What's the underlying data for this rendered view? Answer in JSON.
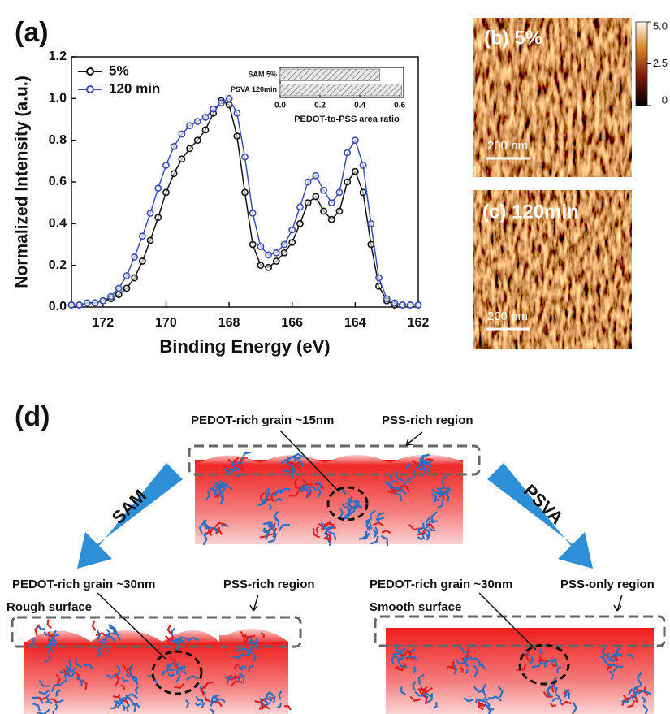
{
  "chart_data": [
    {
      "type": "line",
      "xlabel": "Binding Energy (eV)",
      "ylabel": "Normalized Intensity (a.u.)",
      "x": [
        173,
        172.75,
        172.5,
        172.25,
        172,
        171.75,
        171.5,
        171.25,
        171,
        170.75,
        170.5,
        170.25,
        170,
        169.75,
        169.5,
        169.25,
        169,
        168.75,
        168.5,
        168.25,
        168,
        167.75,
        167.5,
        167.25,
        167,
        166.75,
        166.5,
        166.25,
        166,
        165.75,
        165.5,
        165.25,
        165,
        164.75,
        164.5,
        164.25,
        164,
        163.75,
        163.5,
        163.25,
        163,
        162.75,
        162.5,
        162.25,
        162
      ],
      "series": [
        {
          "name": "5%",
          "color": "#111111",
          "values": [
            0.01,
            0.01,
            0.02,
            0.02,
            0.03,
            0.04,
            0.06,
            0.09,
            0.14,
            0.22,
            0.32,
            0.43,
            0.55,
            0.64,
            0.71,
            0.76,
            0.8,
            0.85,
            0.93,
            0.99,
            0.97,
            0.82,
            0.55,
            0.3,
            0.2,
            0.19,
            0.22,
            0.26,
            0.31,
            0.4,
            0.5,
            0.53,
            0.46,
            0.42,
            0.46,
            0.6,
            0.65,
            0.55,
            0.3,
            0.1,
            0.03,
            0.01,
            0.01,
            0.01,
            0.01
          ]
        },
        {
          "name": "120 min",
          "color": "#3b4fb0",
          "values": [
            0.01,
            0.01,
            0.02,
            0.02,
            0.03,
            0.05,
            0.09,
            0.15,
            0.24,
            0.34,
            0.45,
            0.57,
            0.68,
            0.77,
            0.83,
            0.87,
            0.89,
            0.91,
            0.95,
            0.98,
            1.0,
            0.93,
            0.72,
            0.45,
            0.29,
            0.25,
            0.26,
            0.3,
            0.37,
            0.48,
            0.6,
            0.63,
            0.56,
            0.5,
            0.55,
            0.74,
            0.8,
            0.68,
            0.4,
            0.14,
            0.04,
            0.02,
            0.01,
            0.01,
            0.01
          ]
        }
      ],
      "xlim": [
        173,
        162
      ],
      "xticks": [
        172,
        170,
        168,
        166,
        164,
        162
      ],
      "ylim": [
        0,
        1.2
      ],
      "yticks": [
        {
          "value": 0,
          "label": "0.0"
        },
        0.2,
        0.4,
        0.6,
        0.8,
        {
          "value": 1,
          "label": "1.0"
        },
        1.2
      ],
      "legend": "upper left"
    },
    {
      "type": "hbar",
      "xlabel": "PEDOT-to-PSS area ratio",
      "categories": [
        "SAM 5%",
        "PSVA 120min"
      ],
      "values": [
        0.5,
        0.61
      ],
      "color": "#888888",
      "xlim": [
        0,
        0.62
      ],
      "xticks": [
        {
          "value": 0,
          "label": "0.0"
        },
        0.2,
        0.4,
        0.6
      ]
    }
  ],
  "panels": {
    "a": "(a)",
    "b": "(b) 5%",
    "c": "(c) 120min",
    "d": "(d)"
  },
  "afm": {
    "scale_bars": [
      "200 nm",
      "200 nm"
    ],
    "colorbar": {
      "lim": [
        0,
        5
      ],
      "ticks": [
        {
          "value": 5,
          "label": "5.0"
        },
        2.5,
        0
      ]
    }
  },
  "diagram": {
    "top": {
      "grain": "PEDOT-rich grain ~15nm",
      "region": "PSS-rich region"
    },
    "arrows": [
      "SAM",
      "PSVA"
    ],
    "left": {
      "grain": "PEDOT-rich grain ~30nm",
      "region": "PSS-rich region",
      "surface": "Rough surface"
    },
    "right": {
      "grain": "PEDOT-rich grain ~30nm",
      "region": "PSS-only region",
      "surface": "Smooth surface"
    }
  }
}
